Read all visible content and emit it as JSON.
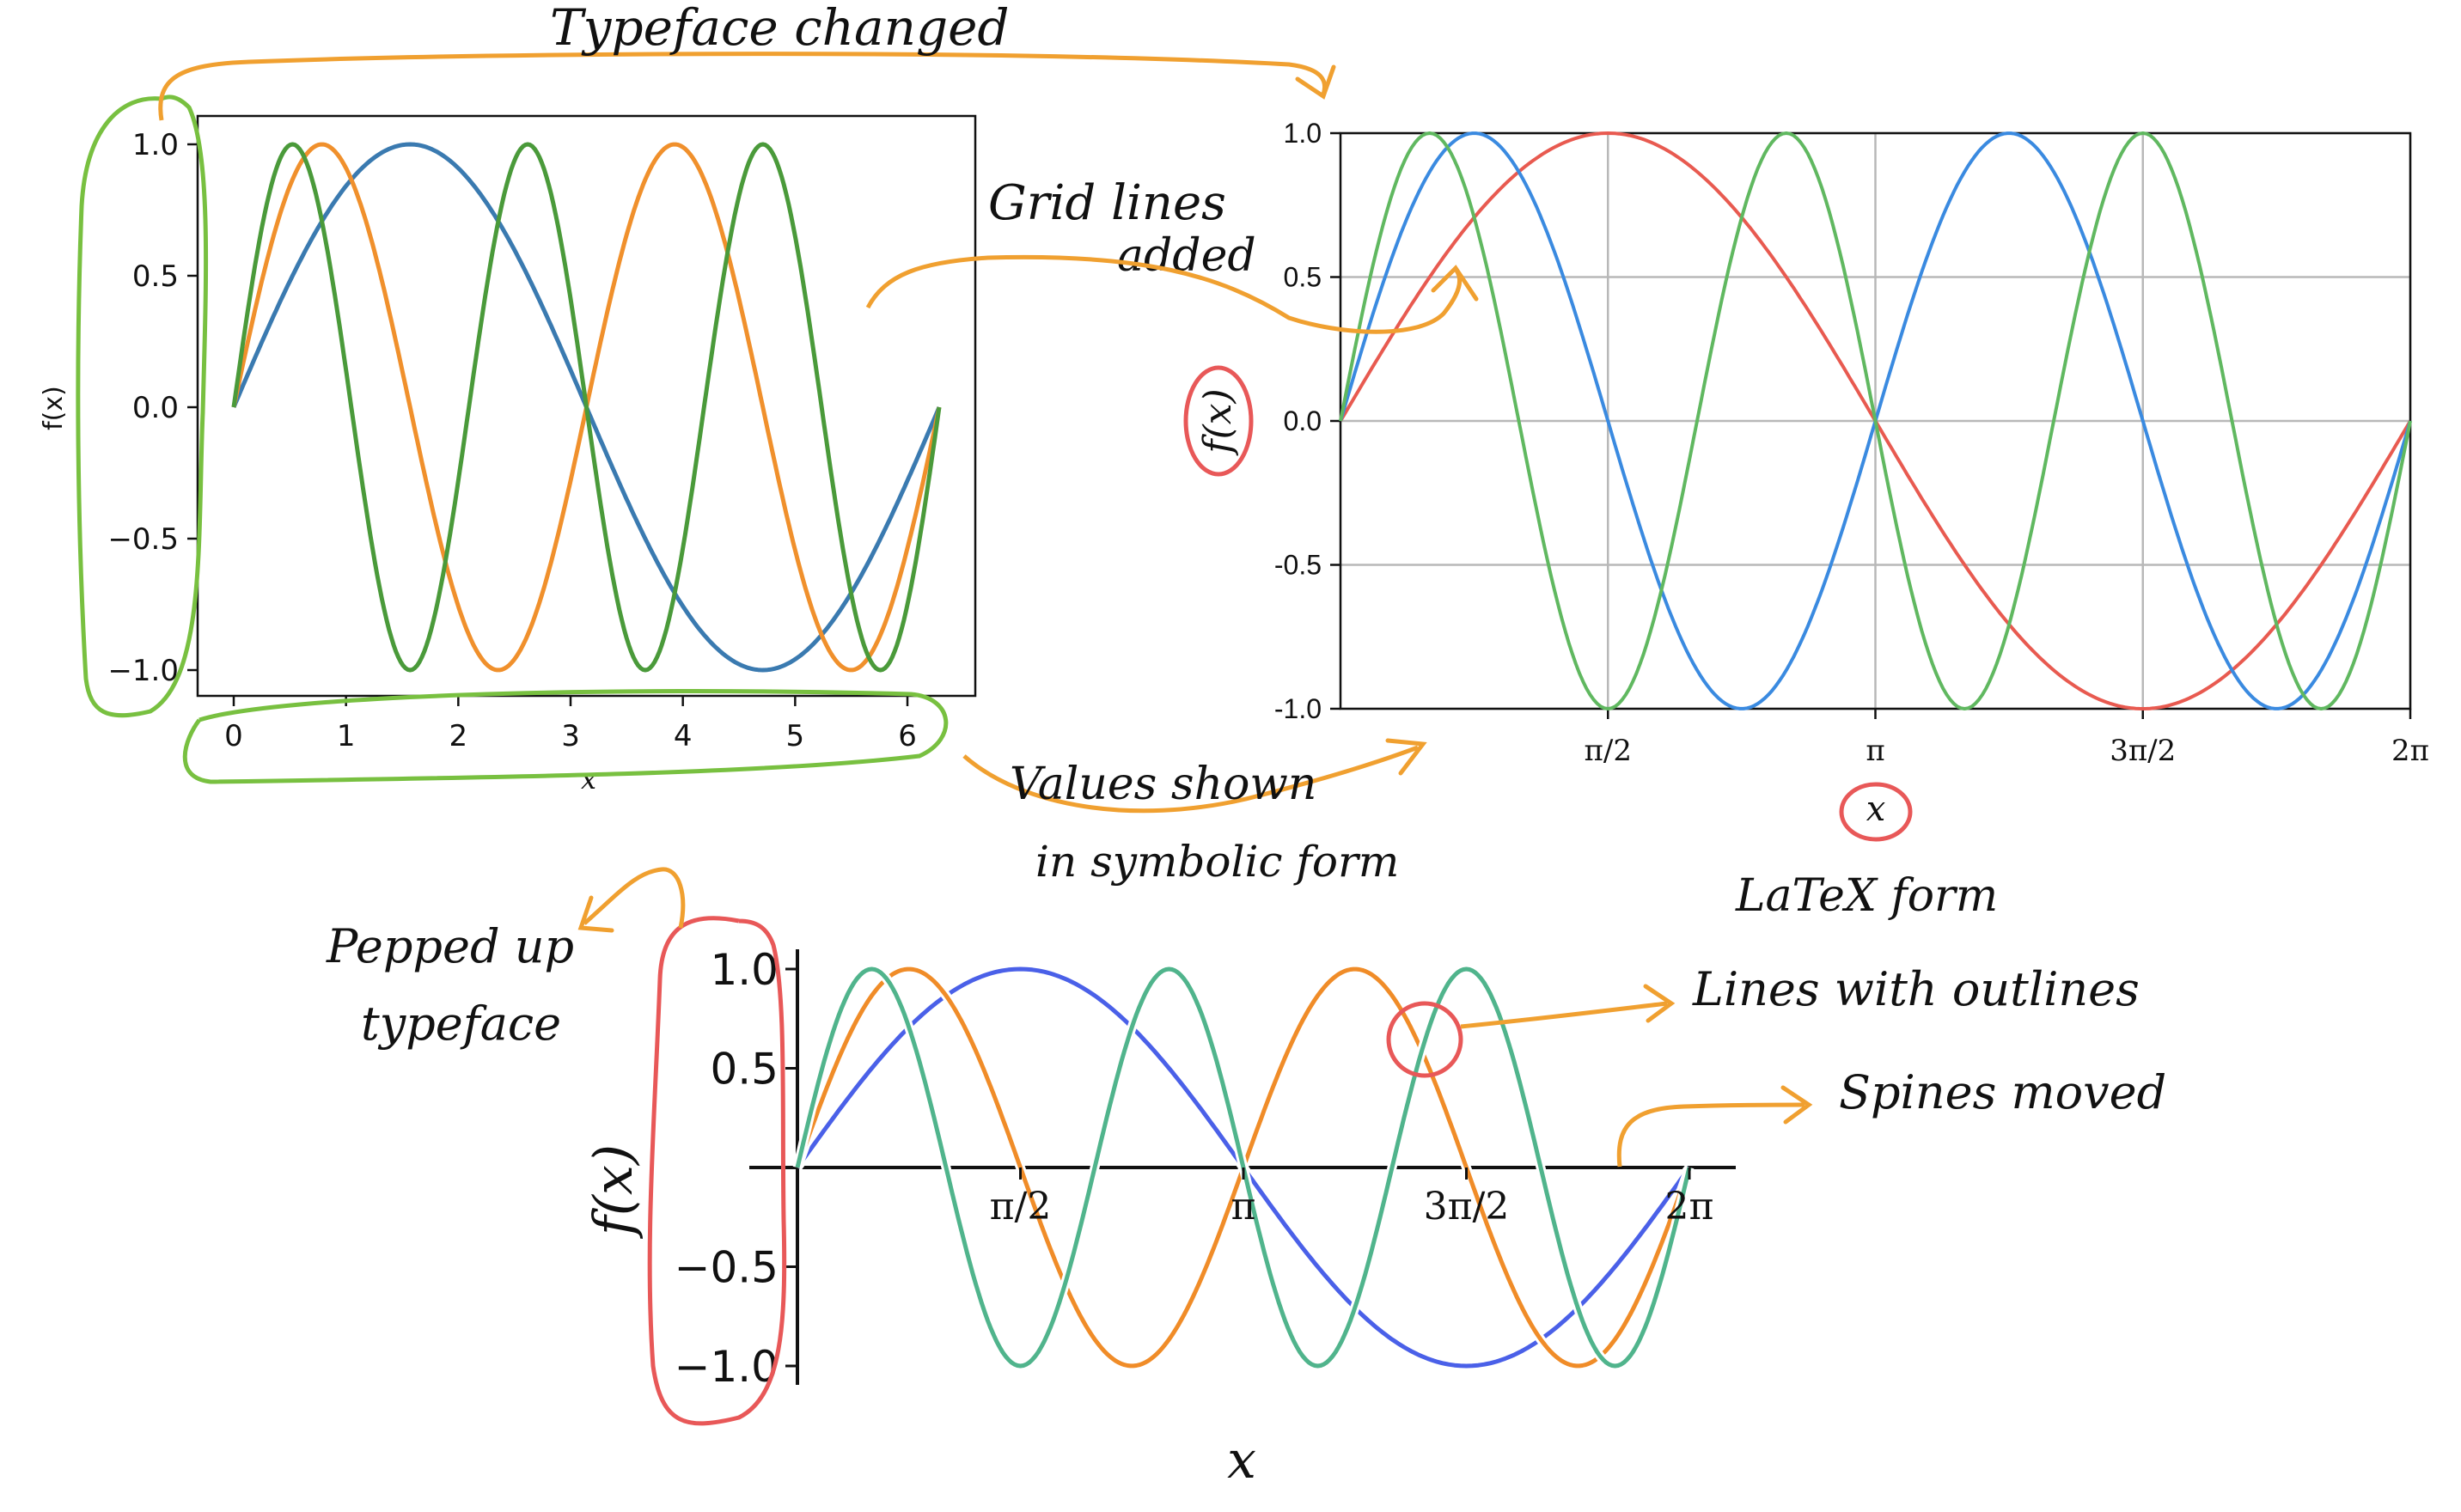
{
  "colors": {
    "annotation_orange": "#f0a030",
    "annotation_green": "#78c040",
    "annotation_red": "#e85858"
  },
  "chart_data": [
    {
      "type": "line",
      "x": [
        0,
        6.283
      ],
      "xticks": [
        "0",
        "1",
        "2",
        "3",
        "4",
        "5",
        "6"
      ],
      "yticks": [
        "1.0",
        "0.5",
        "0.0",
        "−0.5",
        "−1.0"
      ],
      "xlabel": "x",
      "ylabel": "f(x)",
      "ylim": [
        -1,
        1
      ],
      "grid": false,
      "series": [
        {
          "function": "sin(x)",
          "color": "#3a7ab0"
        },
        {
          "function": "sin(2x)",
          "color": "#f0902c"
        },
        {
          "function": "sin(3x)",
          "color": "#4a9a3a"
        }
      ]
    },
    {
      "type": "line",
      "x": [
        0,
        6.283
      ],
      "xticks": [
        "π/2",
        "π",
        "3π/2",
        "2π"
      ],
      "yticks": [
        "1.0",
        "0.5",
        "0.0",
        "-0.5",
        "-1.0"
      ],
      "xlabel": "x",
      "ylabel": "f(x)",
      "ylim": [
        -1,
        1
      ],
      "grid": true,
      "series": [
        {
          "function": "sin(x)",
          "color": "#e85a50"
        },
        {
          "function": "sin(2x)",
          "color": "#3a8ae0"
        },
        {
          "function": "sin(3x)",
          "color": "#60b860"
        }
      ]
    },
    {
      "type": "line",
      "x": [
        0,
        6.283
      ],
      "xticks": [
        "π/2",
        "π",
        "3π/2",
        "2π"
      ],
      "yticks": [
        "1.0",
        "0.5",
        "−0.5",
        "−1.0"
      ],
      "xlabel": "x",
      "ylabel": "f(x)",
      "ylim": [
        -1,
        1
      ],
      "grid": false,
      "spines": "centered",
      "series": [
        {
          "function": "sin(x)",
          "color": "#4a60e8"
        },
        {
          "function": "sin(2x)",
          "color": "#f08c28"
        },
        {
          "function": "sin(3x)",
          "color": "#50b48c"
        }
      ]
    }
  ],
  "annotations": {
    "typeface_changed": "Typeface changed",
    "grid_lines_1": "Grid lines",
    "grid_lines_2": "added",
    "values_shown_1": "Values shown",
    "values_shown_2": "in symbolic form",
    "latex_form": "LaTeX form",
    "lines_outlines": "Lines with outlines",
    "spines_moved": "Spines moved",
    "pepped_up_1": "Pepped up",
    "pepped_up_2": "typeface"
  }
}
